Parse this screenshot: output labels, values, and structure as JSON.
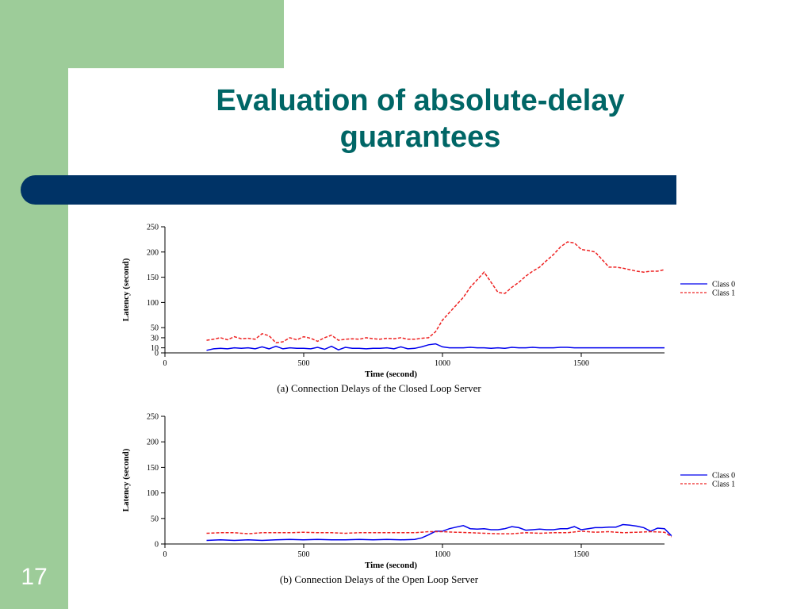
{
  "slide": {
    "title_line1": "Evaluation of absolute-delay",
    "title_line2": "guarantees",
    "number": "17"
  },
  "chart_data": [
    {
      "type": "line",
      "caption": "(a) Connection Delays of the Closed Loop Server",
      "xlabel": "Time (second)",
      "ylabel": "Latency (second)",
      "xlim": [
        0,
        1800
      ],
      "ylim": [
        0,
        250
      ],
      "xticks": [
        0,
        500,
        1000,
        1500
      ],
      "yticks": [
        0,
        10,
        30,
        50,
        100,
        150,
        200,
        250
      ],
      "legend": "right",
      "series": [
        {
          "name": "Class 0",
          "color": "#0000ee",
          "style": "solid",
          "points": [
            [
              150,
              5
            ],
            [
              175,
              8
            ],
            [
              200,
              9
            ],
            [
              225,
              8
            ],
            [
              250,
              10
            ],
            [
              275,
              9
            ],
            [
              300,
              10
            ],
            [
              325,
              8
            ],
            [
              350,
              12
            ],
            [
              375,
              8
            ],
            [
              400,
              13
            ],
            [
              425,
              8
            ],
            [
              450,
              10
            ],
            [
              475,
              9
            ],
            [
              500,
              9
            ],
            [
              525,
              8
            ],
            [
              550,
              11
            ],
            [
              575,
              7
            ],
            [
              600,
              13
            ],
            [
              625,
              6
            ],
            [
              650,
              11
            ],
            [
              675,
              9
            ],
            [
              700,
              9
            ],
            [
              725,
              8
            ],
            [
              750,
              9
            ],
            [
              775,
              9
            ],
            [
              800,
              10
            ],
            [
              825,
              8
            ],
            [
              850,
              12
            ],
            [
              875,
              8
            ],
            [
              900,
              9
            ],
            [
              925,
              12
            ],
            [
              950,
              16
            ],
            [
              975,
              18
            ],
            [
              1000,
              12
            ],
            [
              1025,
              10
            ],
            [
              1050,
              10
            ],
            [
              1075,
              10
            ],
            [
              1100,
              11
            ],
            [
              1125,
              10
            ],
            [
              1150,
              10
            ],
            [
              1175,
              9
            ],
            [
              1200,
              10
            ],
            [
              1225,
              9
            ],
            [
              1250,
              11
            ],
            [
              1275,
              10
            ],
            [
              1300,
              10
            ],
            [
              1325,
              11
            ],
            [
              1350,
              10
            ],
            [
              1375,
              10
            ],
            [
              1400,
              10
            ],
            [
              1425,
              11
            ],
            [
              1450,
              11
            ],
            [
              1475,
              10
            ],
            [
              1500,
              10
            ],
            [
              1550,
              10
            ],
            [
              1600,
              10
            ],
            [
              1650,
              10
            ],
            [
              1700,
              10
            ],
            [
              1750,
              10
            ],
            [
              1800,
              10
            ]
          ]
        },
        {
          "name": "Class 1",
          "color": "#ee2222",
          "style": "dashed",
          "points": [
            [
              150,
              25
            ],
            [
              175,
              27
            ],
            [
              200,
              30
            ],
            [
              225,
              26
            ],
            [
              250,
              32
            ],
            [
              275,
              28
            ],
            [
              300,
              29
            ],
            [
              325,
              27
            ],
            [
              350,
              38
            ],
            [
              375,
              34
            ],
            [
              400,
              20
            ],
            [
              425,
              22
            ],
            [
              450,
              30
            ],
            [
              475,
              26
            ],
            [
              500,
              32
            ],
            [
              525,
              29
            ],
            [
              550,
              23
            ],
            [
              575,
              30
            ],
            [
              600,
              35
            ],
            [
              625,
              25
            ],
            [
              650,
              27
            ],
            [
              675,
              28
            ],
            [
              700,
              27
            ],
            [
              725,
              30
            ],
            [
              750,
              28
            ],
            [
              775,
              27
            ],
            [
              800,
              29
            ],
            [
              825,
              28
            ],
            [
              850,
              30
            ],
            [
              875,
              27
            ],
            [
              900,
              27
            ],
            [
              925,
              29
            ],
            [
              950,
              30
            ],
            [
              975,
              42
            ],
            [
              1000,
              65
            ],
            [
              1025,
              80
            ],
            [
              1050,
              95
            ],
            [
              1075,
              110
            ],
            [
              1100,
              130
            ],
            [
              1125,
              145
            ],
            [
              1150,
              160
            ],
            [
              1175,
              140
            ],
            [
              1200,
              120
            ],
            [
              1225,
              118
            ],
            [
              1250,
              130
            ],
            [
              1275,
              140
            ],
            [
              1300,
              152
            ],
            [
              1325,
              162
            ],
            [
              1350,
              170
            ],
            [
              1375,
              183
            ],
            [
              1400,
              195
            ],
            [
              1425,
              210
            ],
            [
              1450,
              220
            ],
            [
              1475,
              218
            ],
            [
              1500,
              205
            ],
            [
              1525,
              203
            ],
            [
              1550,
              200
            ],
            [
              1575,
              185
            ],
            [
              1600,
              170
            ],
            [
              1625,
              170
            ],
            [
              1650,
              168
            ],
            [
              1675,
              165
            ],
            [
              1700,
              162
            ],
            [
              1725,
              160
            ],
            [
              1750,
              162
            ],
            [
              1775,
              162
            ],
            [
              1800,
              165
            ]
          ]
        }
      ]
    },
    {
      "type": "line",
      "caption": "(b) Connection Delays of the Open Loop Server",
      "xlabel": "Time (second)",
      "ylabel": "Latency (second)",
      "xlim": [
        0,
        1800
      ],
      "ylim": [
        0,
        250
      ],
      "xticks": [
        0,
        500,
        1000,
        1500
      ],
      "yticks": [
        0,
        50,
        100,
        150,
        200,
        250
      ],
      "legend": "right",
      "series": [
        {
          "name": "Class 0",
          "color": "#0000ee",
          "style": "solid",
          "points": [
            [
              150,
              7
            ],
            [
              200,
              8
            ],
            [
              250,
              7
            ],
            [
              300,
              8
            ],
            [
              350,
              7
            ],
            [
              400,
              8
            ],
            [
              450,
              9
            ],
            [
              500,
              8
            ],
            [
              550,
              9
            ],
            [
              600,
              8
            ],
            [
              650,
              8
            ],
            [
              700,
              9
            ],
            [
              750,
              8
            ],
            [
              800,
              9
            ],
            [
              850,
              8
            ],
            [
              900,
              9
            ],
            [
              925,
              12
            ],
            [
              950,
              18
            ],
            [
              975,
              25
            ],
            [
              1000,
              25
            ],
            [
              1025,
              30
            ],
            [
              1050,
              33
            ],
            [
              1075,
              36
            ],
            [
              1100,
              30
            ],
            [
              1125,
              29
            ],
            [
              1150,
              30
            ],
            [
              1175,
              28
            ],
            [
              1200,
              28
            ],
            [
              1225,
              30
            ],
            [
              1250,
              34
            ],
            [
              1275,
              32
            ],
            [
              1300,
              27
            ],
            [
              1325,
              28
            ],
            [
              1350,
              29
            ],
            [
              1375,
              28
            ],
            [
              1400,
              28
            ],
            [
              1425,
              30
            ],
            [
              1450,
              30
            ],
            [
              1475,
              34
            ],
            [
              1500,
              28
            ],
            [
              1525,
              30
            ],
            [
              1550,
              32
            ],
            [
              1575,
              32
            ],
            [
              1600,
              33
            ],
            [
              1625,
              33
            ],
            [
              1650,
              38
            ],
            [
              1675,
              37
            ],
            [
              1700,
              35
            ],
            [
              1725,
              32
            ],
            [
              1750,
              25
            ],
            [
              1775,
              31
            ],
            [
              1800,
              30
            ],
            [
              1825,
              16
            ]
          ]
        },
        {
          "name": "Class 1",
          "color": "#ee2222",
          "style": "dashed",
          "points": [
            [
              150,
              21
            ],
            [
              200,
              22
            ],
            [
              250,
              22
            ],
            [
              300,
              20
            ],
            [
              350,
              22
            ],
            [
              400,
              22
            ],
            [
              450,
              22
            ],
            [
              500,
              23
            ],
            [
              550,
              22
            ],
            [
              600,
              22
            ],
            [
              650,
              21
            ],
            [
              700,
              22
            ],
            [
              750,
              22
            ],
            [
              800,
              22
            ],
            [
              850,
              22
            ],
            [
              900,
              22
            ],
            [
              950,
              24
            ],
            [
              1000,
              24
            ],
            [
              1050,
              23
            ],
            [
              1100,
              22
            ],
            [
              1150,
              21
            ],
            [
              1200,
              20
            ],
            [
              1250,
              20
            ],
            [
              1300,
              22
            ],
            [
              1350,
              21
            ],
            [
              1400,
              22
            ],
            [
              1450,
              22
            ],
            [
              1500,
              25
            ],
            [
              1550,
              23
            ],
            [
              1600,
              24
            ],
            [
              1650,
              22
            ],
            [
              1700,
              23
            ],
            [
              1750,
              24
            ],
            [
              1800,
              23
            ],
            [
              1825,
              14
            ]
          ]
        }
      ]
    }
  ]
}
